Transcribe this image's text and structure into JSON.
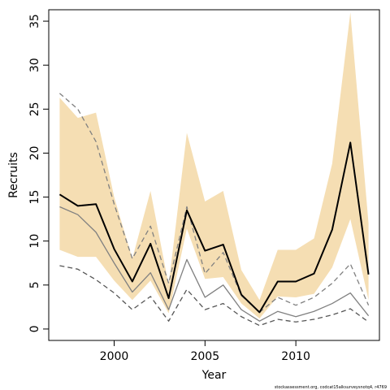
{
  "chart_data": {
    "type": "line",
    "xlabel": "Year",
    "ylabel": "Recruits",
    "xlim": [
      1996.4,
      2014.6
    ],
    "ylim": [
      -1.3,
      36.3
    ],
    "x_ticks": [
      2000,
      2005,
      2010
    ],
    "y_ticks": [
      0,
      5,
      10,
      15,
      20,
      25,
      30,
      35
    ],
    "grid": false,
    "legend": "none",
    "footnote": "stockassessment.org, codcat15alksurveysnotq4, r4769",
    "x": [
      1997,
      1998,
      1999,
      2000,
      2001,
      2002,
      2003,
      2004,
      2005,
      2006,
      2007,
      2008,
      2009,
      2010,
      2011,
      2012,
      2013,
      2014
    ],
    "band": {
      "color": "#f5deb3",
      "lower": [
        9.0,
        8.2,
        8.2,
        5.5,
        3.3,
        5.5,
        1.8,
        11.4,
        5.7,
        5.9,
        2.9,
        1.2,
        3.7,
        3.6,
        4.0,
        7.0,
        12.5,
        3.3
      ],
      "upper": [
        26.3,
        24.0,
        24.6,
        15.0,
        8.0,
        15.7,
        5.0,
        22.3,
        14.5,
        15.7,
        6.7,
        3.3,
        9.0,
        9.0,
        10.3,
        18.8,
        36.0,
        12.0
      ]
    },
    "series": [
      {
        "style": "solid",
        "color": "#000000",
        "width": 2,
        "values": [
          15.3,
          14.0,
          14.2,
          9.1,
          5.4,
          9.7,
          3.5,
          13.5,
          8.9,
          9.6,
          3.9,
          1.9,
          5.4,
          5.4,
          6.3,
          11.3,
          21.2,
          6.2
        ]
      },
      {
        "style": "solid",
        "color": "#808080",
        "width": 1.3,
        "values": [
          13.9,
          13.0,
          11.0,
          7.5,
          4.2,
          6.4,
          2.2,
          7.9,
          3.6,
          5.0,
          2.2,
          0.9,
          2.0,
          1.4,
          2.0,
          2.9,
          4.1,
          1.5
        ]
      },
      {
        "style": "dashed",
        "color": "#555555",
        "width": 1.3,
        "values": [
          7.2,
          6.8,
          5.6,
          4.1,
          2.2,
          3.7,
          0.9,
          4.5,
          2.2,
          2.9,
          1.4,
          0.4,
          1.1,
          0.8,
          1.1,
          1.6,
          2.3,
          0.8
        ]
      },
      {
        "style": "dashed",
        "color": "#808080",
        "width": 1.3,
        "values": [
          26.8,
          25.0,
          21.3,
          14.2,
          8.0,
          11.7,
          5.2,
          13.9,
          6.3,
          8.7,
          3.8,
          1.9,
          3.6,
          2.7,
          3.6,
          5.2,
          7.4,
          2.7
        ]
      }
    ]
  }
}
